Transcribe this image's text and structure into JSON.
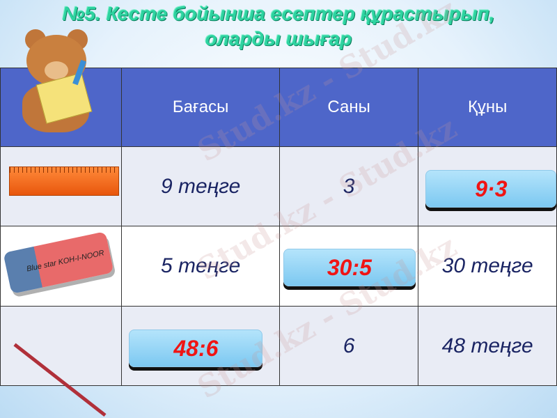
{
  "title": {
    "line1": "№5. Кесте бойынша есептер құрастырып,",
    "line2": "оларды шығар"
  },
  "table": {
    "headers": [
      "",
      "Бағасы",
      "Саны",
      "Құны"
    ],
    "rows": [
      {
        "item": "ruler",
        "price": "9 теңге",
        "count": "3",
        "cost": "",
        "answer": "9·3"
      },
      {
        "item": "eraser",
        "price": "5 теңге",
        "count": "",
        "cost": "30 теңге",
        "answer": "30:5"
      },
      {
        "item": "pencil",
        "price": "",
        "count": "6",
        "cost": "48 теңге",
        "answer": "48:6"
      }
    ]
  },
  "eraser_label": "Blue star KOH-I-NOOR",
  "watermark": "Stud.kz - Stud.kz",
  "colors": {
    "header": "#4e66c9",
    "answer_text": "#f01414",
    "title": "#2ed3a0"
  }
}
